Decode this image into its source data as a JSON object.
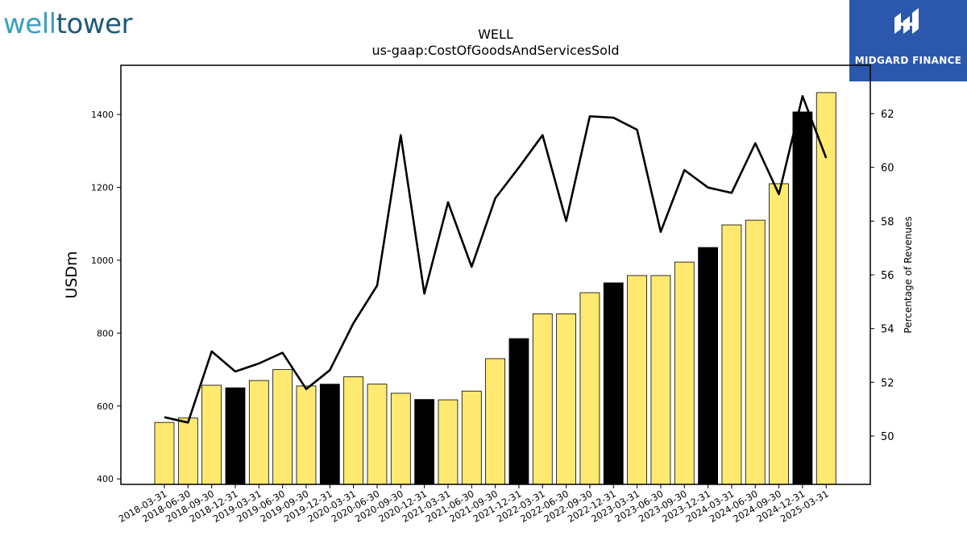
{
  "brand": {
    "left_word": "well",
    "right_word": "tower",
    "sponsor": "MIDGARD FINANCE"
  },
  "colors": {
    "bar_default": "#ffe970",
    "bar_highlight": "#000000",
    "line": "#000000",
    "sponsor_bg": "#2b58ad",
    "brand_light": "#3aa0c0",
    "brand_dark": "#1f5a7a"
  },
  "chart_data": {
    "type": "bar",
    "title": "WELL",
    "subtitle": "us-gaap:CostOfGoodsAndServicesSold",
    "ylabel": "USDm",
    "y2label": "Percentage of Revenues",
    "ylim": [
      385,
      1535
    ],
    "y2lim": [
      48.2,
      63.8
    ],
    "yticks": [
      400,
      600,
      800,
      1000,
      1200,
      1400
    ],
    "y2ticks": [
      50,
      52,
      54,
      56,
      58,
      60,
      62
    ],
    "grid": false,
    "categories": [
      "2018-03-31",
      "2018-06-30",
      "2018-09-30",
      "2018-12-31",
      "2019-03-31",
      "2019-06-30",
      "2019-09-30",
      "2019-12-31",
      "2020-03-31",
      "2020-06-30",
      "2020-09-30",
      "2020-12-31",
      "2021-03-31",
      "2021-06-30",
      "2021-09-30",
      "2021-12-31",
      "2022-03-31",
      "2022-06-30",
      "2022-09-30",
      "2022-12-31",
      "2023-03-31",
      "2023-06-30",
      "2023-09-30",
      "2023-12-31",
      "2024-03-31",
      "2024-06-30",
      "2024-09-30",
      "2024-12-31",
      "2025-03-31"
    ],
    "series": [
      {
        "kind": "bar",
        "values": [
          555,
          567,
          657,
          650,
          670,
          700,
          655,
          660,
          680,
          660,
          635,
          618,
          617,
          641,
          730,
          785,
          853,
          853,
          911,
          938,
          958,
          958,
          995,
          1035,
          1097,
          1110,
          1210,
          1407,
          1460
        ],
        "highlight": [
          false,
          false,
          false,
          true,
          false,
          false,
          false,
          true,
          false,
          false,
          false,
          true,
          false,
          false,
          false,
          true,
          false,
          false,
          false,
          true,
          false,
          false,
          false,
          true,
          false,
          false,
          false,
          true,
          false
        ]
      },
      {
        "kind": "line",
        "axis": "right",
        "values": [
          50.7,
          50.5,
          53.15,
          52.4,
          52.7,
          53.1,
          51.75,
          52.45,
          54.2,
          55.6,
          61.2,
          55.3,
          58.7,
          56.3,
          58.85,
          60.0,
          61.2,
          58.0,
          61.9,
          61.85,
          61.4,
          57.6,
          59.9,
          59.25,
          59.05,
          60.9,
          59.0,
          62.65,
          60.35
        ]
      }
    ]
  }
}
